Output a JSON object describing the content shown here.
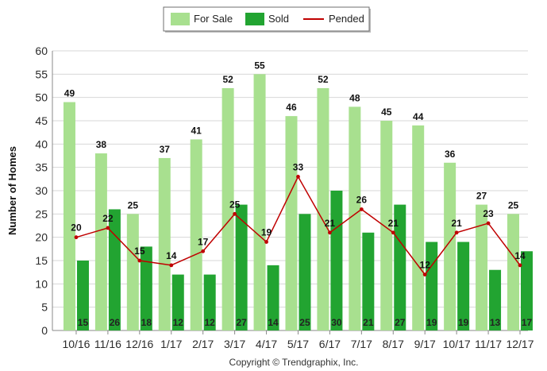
{
  "chart_data": {
    "type": "bar",
    "categories": [
      "10/16",
      "11/16",
      "12/16",
      "1/17",
      "2/17",
      "3/17",
      "4/17",
      "5/17",
      "6/17",
      "7/17",
      "8/17",
      "9/17",
      "10/17",
      "11/17",
      "12/17"
    ],
    "series": [
      {
        "name": "For Sale",
        "type": "bar",
        "color": "#a8e08f",
        "values": [
          49,
          38,
          25,
          37,
          41,
          52,
          55,
          46,
          52,
          48,
          45,
          44,
          36,
          27,
          25
        ]
      },
      {
        "name": "Sold",
        "type": "bar",
        "color": "#22a431",
        "values": [
          15,
          26,
          18,
          12,
          12,
          27,
          14,
          25,
          30,
          21,
          27,
          19,
          19,
          13,
          17
        ]
      },
      {
        "name": "Pended",
        "type": "line",
        "color": "#c00000",
        "values": [
          20,
          22,
          15,
          14,
          17,
          25,
          19,
          33,
          21,
          26,
          21,
          12,
          21,
          23,
          14
        ]
      }
    ],
    "ylabel": "Number of Homes",
    "xlabel": "",
    "ylim": [
      0,
      60
    ],
    "yticks": [
      0,
      5,
      10,
      15,
      20,
      25,
      30,
      35,
      40,
      45,
      50,
      55,
      60
    ],
    "grid": true,
    "legend": "top-center"
  },
  "credit": "Copyright © Trendgraphix, Inc."
}
